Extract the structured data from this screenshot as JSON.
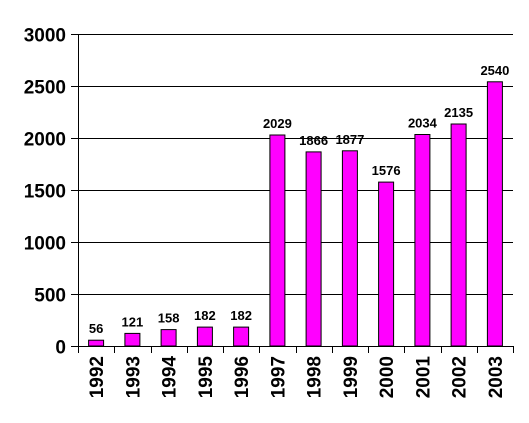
{
  "chart_data": {
    "type": "bar",
    "categories": [
      "1992",
      "1993",
      "1994",
      "1995",
      "1996",
      "1997",
      "1998",
      "1999",
      "2000",
      "2001",
      "2002",
      "2003"
    ],
    "values": [
      56,
      121,
      158,
      182,
      182,
      2029,
      1866,
      1877,
      1576,
      2034,
      2135,
      2540
    ],
    "data_labels": [
      "56",
      "121",
      "158",
      "182",
      "182",
      "2029",
      "1866",
      "1877",
      "1576",
      "2034",
      "2135",
      "2540"
    ],
    "title": "",
    "xlabel": "",
    "ylabel": "",
    "ylim": [
      0,
      3000
    ],
    "yticks": [
      0,
      500,
      1000,
      1500,
      2000,
      2500,
      3000
    ],
    "ytick_labels": [
      "0",
      "500",
      "1000",
      "1500",
      "2000",
      "2500",
      "3000"
    ],
    "grid": true,
    "grid_axis": "y",
    "legend": false,
    "bar_color": "#FF00FF",
    "bar_edge_color": "#000000",
    "grid_color": "#000000"
  }
}
